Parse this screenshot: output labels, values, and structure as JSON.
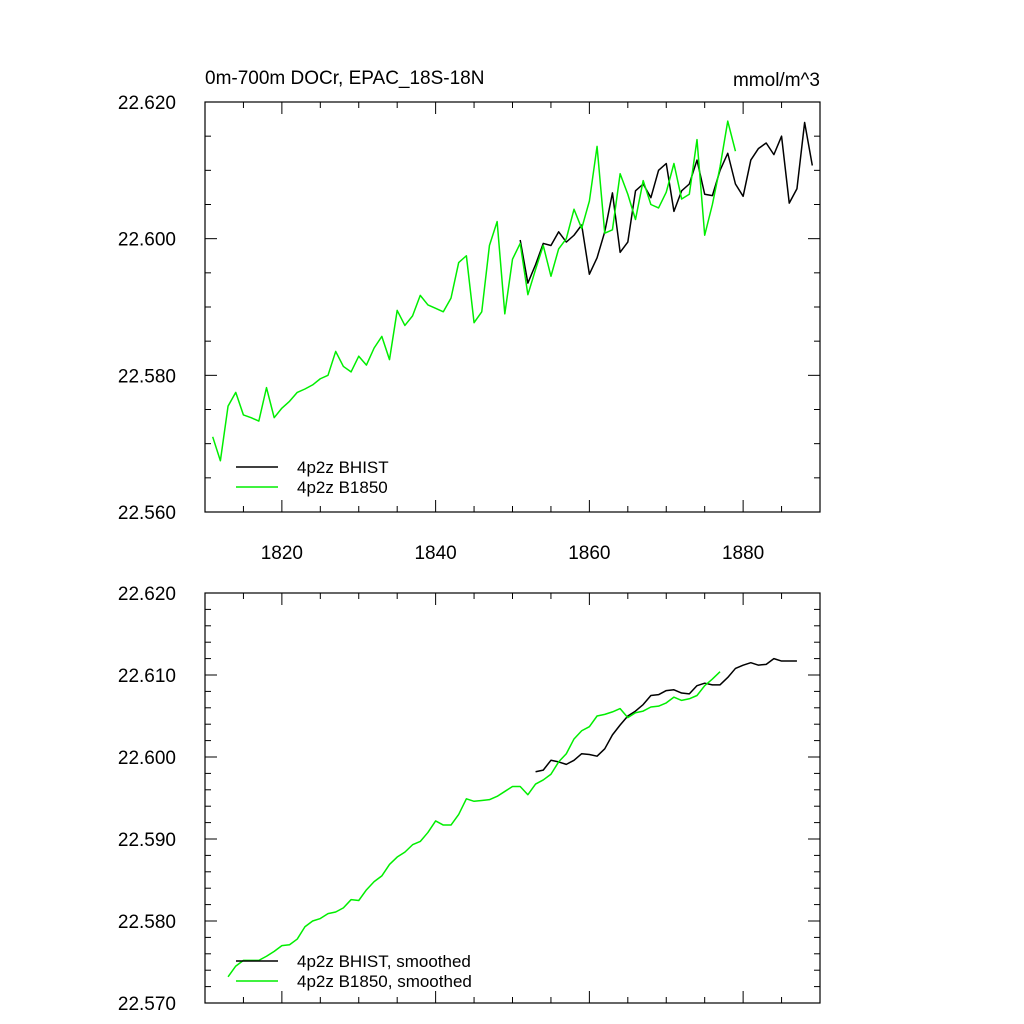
{
  "figure": {
    "title_left": "0m-700m DOCr, EPAC_18S-18N",
    "title_right": "mmol/m^3"
  },
  "colors": {
    "BHIST": "#000000",
    "B1850": "#00ee00"
  },
  "chart_data": [
    {
      "type": "line",
      "title": "0m-700m DOCr, EPAC_18S-18N",
      "units": "mmol/m^3",
      "xlabel": "",
      "ylabel": "",
      "xlim": [
        1810,
        1890
      ],
      "ylim": [
        22.56,
        22.62
      ],
      "xticks": [
        1820,
        1840,
        1860,
        1880
      ],
      "xtick_labels": [
        "1820",
        "1840",
        "1860",
        "1880"
      ],
      "yticks": [
        22.56,
        22.58,
        22.6,
        22.62
      ],
      "ytick_labels": [
        "22.560",
        "22.580",
        "22.600",
        "22.620"
      ],
      "x_minor_step": 5,
      "y_minor_step": 0.005,
      "legend": "bottom-left",
      "series": [
        {
          "name": "4p2z BHIST",
          "color": "#000000",
          "x": [
            1851,
            1852,
            1853,
            1854,
            1855,
            1856,
            1857,
            1858,
            1859,
            1860,
            1861,
            1862,
            1863,
            1864,
            1865,
            1866,
            1867,
            1868,
            1869,
            1870,
            1871,
            1872,
            1873,
            1874,
            1875,
            1876,
            1877,
            1878,
            1879,
            1880,
            1881,
            1882,
            1883,
            1884,
            1885,
            1886,
            1887,
            1888,
            1889
          ],
          "y": [
            22.5998,
            22.5935,
            22.5962,
            22.5993,
            22.599,
            22.601,
            22.5995,
            22.6005,
            22.602,
            22.5948,
            22.5972,
            22.601,
            22.6067,
            22.598,
            22.5995,
            22.607,
            22.608,
            22.606,
            22.61,
            22.611,
            22.604,
            22.607,
            22.608,
            22.6115,
            22.6065,
            22.6063,
            22.61,
            22.6125,
            22.608,
            22.6062,
            22.6115,
            22.6132,
            22.614,
            22.6123,
            22.615,
            22.6052,
            22.6073,
            22.617,
            22.6107
          ]
        },
        {
          "name": "4p2z B1850",
          "color": "#00ee00",
          "x": [
            1811,
            1812,
            1813,
            1814,
            1815,
            1816,
            1817,
            1818,
            1819,
            1820,
            1821,
            1822,
            1823,
            1824,
            1825,
            1826,
            1827,
            1828,
            1829,
            1830,
            1831,
            1832,
            1833,
            1834,
            1835,
            1836,
            1837,
            1838,
            1839,
            1840,
            1841,
            1842,
            1843,
            1844,
            1845,
            1846,
            1847,
            1848,
            1849,
            1850,
            1851,
            1852,
            1853,
            1854,
            1855,
            1856,
            1857,
            1858,
            1859,
            1860,
            1861,
            1862,
            1863,
            1864,
            1865,
            1866,
            1867,
            1868,
            1869,
            1870,
            1871,
            1872,
            1873,
            1874,
            1875,
            1876,
            1877,
            1878,
            1879
          ],
          "y": [
            22.571,
            22.5675,
            22.5755,
            22.5775,
            22.5742,
            22.5738,
            22.5733,
            22.5782,
            22.5738,
            22.5752,
            22.5762,
            22.5775,
            22.578,
            22.5786,
            22.5795,
            22.58,
            22.5835,
            22.5813,
            22.5805,
            22.5828,
            22.5815,
            22.584,
            22.5857,
            22.5823,
            22.5895,
            22.5873,
            22.5887,
            22.5917,
            22.5903,
            22.5898,
            22.5893,
            22.5913,
            22.5965,
            22.5975,
            22.5877,
            22.5893,
            22.599,
            22.6025,
            22.589,
            22.597,
            22.5993,
            22.5918,
            22.5955,
            22.599,
            22.5945,
            22.5985,
            22.6,
            22.6043,
            22.6015,
            22.6055,
            22.6135,
            22.6008,
            22.6013,
            22.6095,
            22.6065,
            22.6028,
            22.6085,
            22.605,
            22.6045,
            22.6068,
            22.611,
            22.6058,
            22.6065,
            22.6145,
            22.6005,
            22.605,
            22.6105,
            22.6172,
            22.6128
          ]
        }
      ]
    },
    {
      "type": "line",
      "title": "",
      "xlabel": "",
      "ylabel": "",
      "xlim": [
        1810,
        1890
      ],
      "ylim": [
        22.57,
        22.62
      ],
      "xticks": [
        1820,
        1840,
        1860,
        1880
      ],
      "xtick_labels": [],
      "yticks": [
        22.57,
        22.58,
        22.59,
        22.6,
        22.61,
        22.62
      ],
      "ytick_labels": [
        "22.570",
        "22.580",
        "22.590",
        "22.600",
        "22.610",
        "22.620"
      ],
      "x_minor_step": 5,
      "y_minor_step": 0.002,
      "legend": "bottom-left",
      "series": [
        {
          "name": "4p2z BHIST, smoothed",
          "color": "#000000",
          "x": [
            1853,
            1854,
            1855,
            1856,
            1857,
            1858,
            1859,
            1860,
            1861,
            1862,
            1863,
            1864,
            1865,
            1866,
            1867,
            1868,
            1869,
            1870,
            1871,
            1872,
            1873,
            1874,
            1875,
            1876,
            1877,
            1878,
            1879,
            1880,
            1881,
            1882,
            1883,
            1884,
            1885,
            1886,
            1887
          ],
          "y": [
            22.5982,
            22.5984,
            22.5996,
            22.5994,
            22.5991,
            22.5996,
            22.6004,
            22.6003,
            22.6001,
            22.601,
            22.6027,
            22.6039,
            22.605,
            22.6056,
            22.6064,
            22.6075,
            22.6076,
            22.6081,
            22.6082,
            22.6078,
            22.6077,
            22.6087,
            22.609,
            22.6088,
            22.6088,
            22.6097,
            22.6108,
            22.6112,
            22.6115,
            22.6112,
            22.6113,
            22.612,
            22.6117,
            22.6117,
            22.6117
          ]
        },
        {
          "name": "4p2z B1850, smoothed",
          "color": "#00ee00",
          "x": [
            1813,
            1814,
            1815,
            1816,
            1817,
            1818,
            1819,
            1820,
            1821,
            1822,
            1823,
            1824,
            1825,
            1826,
            1827,
            1828,
            1829,
            1830,
            1831,
            1832,
            1833,
            1834,
            1835,
            1836,
            1837,
            1838,
            1839,
            1840,
            1841,
            1842,
            1843,
            1844,
            1845,
            1846,
            1847,
            1848,
            1849,
            1850,
            1851,
            1852,
            1853,
            1854,
            1855,
            1856,
            1857,
            1858,
            1859,
            1860,
            1861,
            1862,
            1863,
            1864,
            1865,
            1866,
            1867,
            1868,
            1869,
            1870,
            1871,
            1872,
            1873,
            1874,
            1875,
            1876,
            1877
          ],
          "y": [
            22.5732,
            22.5745,
            22.5752,
            22.5752,
            22.5752,
            22.5757,
            22.5763,
            22.577,
            22.5771,
            22.5778,
            22.5793,
            22.58,
            22.5803,
            22.5809,
            22.5811,
            22.5816,
            22.5826,
            22.5825,
            22.5838,
            22.5848,
            22.5855,
            22.5869,
            22.5878,
            22.5884,
            22.5893,
            22.5897,
            22.5908,
            22.5922,
            22.5917,
            22.5917,
            22.593,
            22.5949,
            22.5946,
            22.5947,
            22.5948,
            22.5952,
            22.5958,
            22.5964,
            22.5964,
            22.5954,
            22.5967,
            22.5972,
            22.5979,
            22.5994,
            22.6004,
            22.6022,
            22.6032,
            22.6037,
            22.605,
            22.6052,
            22.6055,
            22.6059,
            22.6048,
            22.6054,
            22.6056,
            22.6061,
            22.6062,
            22.6066,
            22.6073,
            22.6069,
            22.6071,
            22.6075,
            22.6087,
            22.6095,
            22.6104
          ]
        }
      ]
    }
  ]
}
